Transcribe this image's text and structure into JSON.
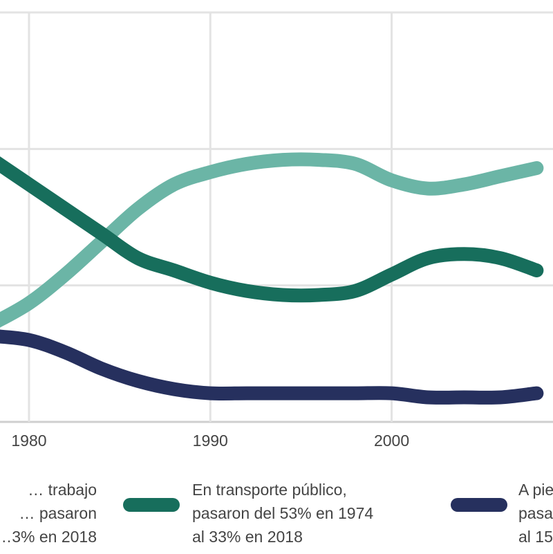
{
  "chart_data": {
    "type": "line",
    "x": [
      1974,
      1976,
      1978,
      1980,
      1982,
      1984,
      1986,
      1988,
      1990,
      1992,
      1994,
      1996,
      1998,
      2000,
      2002,
      2004,
      2006,
      2008,
      2010
    ],
    "xticks": [
      {
        "value": 1980,
        "label": "1980"
      },
      {
        "value": 1990,
        "label": "1990"
      },
      {
        "value": 2000,
        "label": "2000"
      }
    ],
    "xlim": [
      1978.4,
      2008.9
    ],
    "ylim": [
      0,
      100
    ],
    "grid": true,
    "legend_position": "bottom",
    "series": [
      {
        "name": "… trabajo\n… pasaron\n…3% en 2018",
        "color": "#6bb5a6",
        "values": [
          null,
          null,
          24,
          29,
          36,
          44,
          52,
          58,
          61,
          63,
          64,
          64,
          63,
          59,
          57,
          58,
          60,
          62,
          null
        ]
      },
      {
        "name": "En transporte público,\npasaron del 53% en 1974\nal 33% en 2018",
        "color": "#176e5c",
        "values": [
          null,
          null,
          64,
          58,
          52,
          46,
          40,
          37,
          34,
          32,
          31,
          31,
          32,
          36,
          40,
          41,
          40,
          37,
          null
        ]
      },
      {
        "name": "A pie…\npasa…\nal 15…",
        "color": "#26305e",
        "values": [
          null,
          null,
          21,
          20,
          17,
          13,
          10,
          8,
          7,
          7,
          7,
          7,
          7,
          7,
          6,
          6,
          6,
          7,
          null
        ]
      }
    ]
  }
}
